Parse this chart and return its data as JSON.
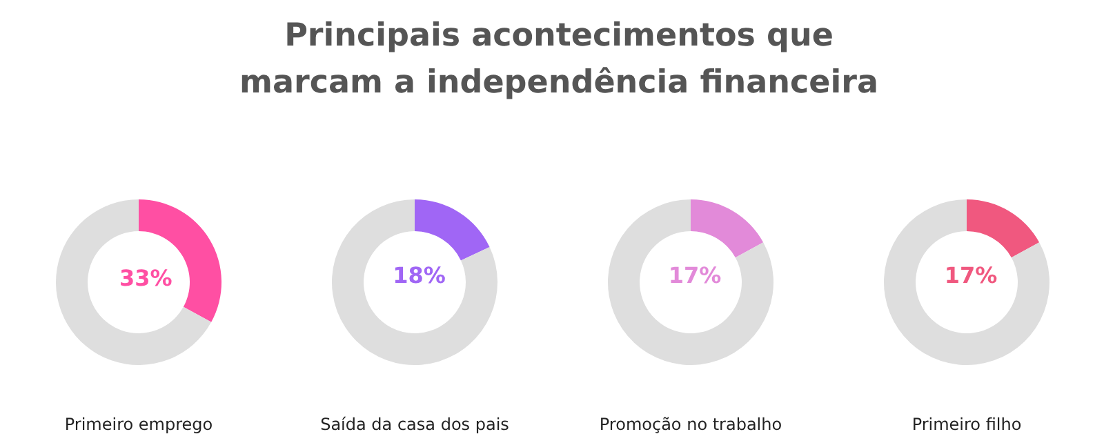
{
  "chart_data": [
    {
      "type": "donut",
      "title": "Principais acontecimentos que marcam a independência financeira",
      "xlabel": "Primeiro emprego",
      "categories": [
        null,
        null
      ],
      "values": [
        33,
        67
      ],
      "colors": [
        "#ff4fa3",
        "#dedede"
      ],
      "value_labels": [
        "33%",
        null
      ]
    },
    {
      "type": "donut",
      "xlabel": "Saída da casa dos pais",
      "categories": [
        null,
        null
      ],
      "values": [
        18,
        82
      ],
      "colors": [
        "#a066f5",
        "#dedede"
      ],
      "value_labels": [
        "18%",
        null
      ]
    },
    {
      "type": "donut",
      "xlabel": "Promoção no trabalho",
      "categories": [
        null,
        null
      ],
      "values": [
        17,
        83
      ],
      "colors": [
        "#e28ad9",
        "#dedede"
      ],
      "value_labels": [
        "17%",
        null
      ]
    },
    {
      "type": "donut",
      "xlabel": "Primeiro filho",
      "categories": [
        null,
        null
      ],
      "values": [
        17,
        83
      ],
      "colors": [
        "#f0587f",
        "#dedede"
      ],
      "value_labels": [
        "17%",
        null
      ]
    }
  ]
}
